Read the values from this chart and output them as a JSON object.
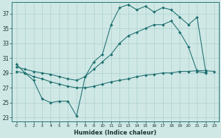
{
  "xlabel": "Humidex (Indice chaleur)",
  "bg_color": "#cfe8e5",
  "line_color": "#1e7070",
  "grid_color": "#aacfcc",
  "xlim": [
    -0.5,
    23.5
  ],
  "ylim": [
    22.5,
    38.5
  ],
  "yticks": [
    23,
    25,
    27,
    29,
    31,
    33,
    35,
    37
  ],
  "xticks": [
    0,
    1,
    2,
    3,
    4,
    5,
    6,
    7,
    8,
    9,
    10,
    11,
    12,
    13,
    14,
    15,
    16,
    17,
    18,
    19,
    20,
    21,
    22,
    23
  ],
  "line1_x": [
    0,
    1,
    2,
    3,
    4,
    5,
    6,
    7,
    8,
    9,
    10,
    11,
    12,
    13,
    14,
    15,
    16,
    17,
    18,
    19,
    20,
    21,
    22
  ],
  "line1_y": [
    30.2,
    29.0,
    28.0,
    25.5,
    25.0,
    25.2,
    25.2,
    23.2,
    28.5,
    30.5,
    31.5,
    35.5,
    37.8,
    38.2,
    37.5,
    38.0,
    37.2,
    37.8,
    37.5,
    36.5,
    35.5,
    36.5,
    29.2
  ],
  "line2_x": [
    0,
    1,
    2,
    3,
    4,
    5,
    6,
    7,
    8,
    9,
    10,
    11,
    12,
    13,
    14,
    15,
    16,
    17,
    18,
    19,
    20,
    21,
    22,
    23
  ],
  "line2_y": [
    29.2,
    29.0,
    28.5,
    28.2,
    27.8,
    27.5,
    27.2,
    27.0,
    27.0,
    27.2,
    27.5,
    27.8,
    28.0,
    28.2,
    28.5,
    28.7,
    28.8,
    29.0,
    29.0,
    29.2,
    29.2,
    29.3,
    29.3,
    29.2
  ],
  "line3_x": [
    0,
    1,
    2,
    3,
    4,
    5,
    6,
    7,
    8,
    9,
    10,
    11,
    12,
    13,
    14,
    15,
    16,
    17,
    18,
    19,
    20,
    21,
    22
  ],
  "line3_y": [
    29.8,
    29.5,
    29.2,
    29.0,
    28.8,
    28.5,
    28.2,
    28.0,
    28.5,
    29.5,
    30.5,
    31.5,
    33.0,
    34.0,
    34.5,
    35.0,
    35.5,
    35.5,
    36.0,
    34.5,
    32.5,
    29.2,
    29.0
  ]
}
